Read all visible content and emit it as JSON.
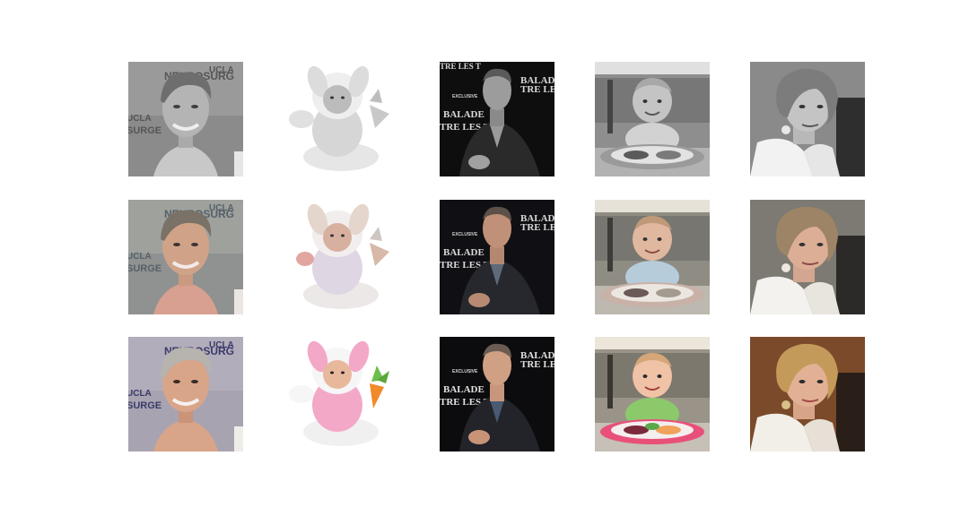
{
  "figure": {
    "rows": [
      {
        "name": "grayscale-input",
        "filter": "grayscale"
      },
      {
        "name": "colorized-result",
        "filter": "washed"
      },
      {
        "name": "ground-truth",
        "filter": "none"
      }
    ],
    "columns": [
      {
        "name": "woman-short-gray-hair",
        "backdrop_lines": [
          "UCLA",
          "NEUROSURG",
          "UCLA",
          "SURGE"
        ]
      },
      {
        "name": "baby-bunny-costume",
        "backdrop_lines": []
      },
      {
        "name": "man-dark-suit",
        "backdrop_lines": [
          "BALADE",
          "TRE LES T",
          "EXCLUSIVE"
        ]
      },
      {
        "name": "toddler-meal-tray",
        "backdrop_lines": []
      },
      {
        "name": "woman-blonde-hair",
        "backdrop_lines": []
      }
    ]
  },
  "palette": {
    "skin": "#d9a588",
    "gray_hair": "#b7b3ae",
    "backdrop_violet": "#a8a3b1",
    "bunny_pink": "#f3a8c8",
    "carrot": "#f08a2a",
    "suit": "#23242a",
    "tray_pink": "#e8507a",
    "shirt_green": "#8cc96a",
    "blonde": "#c49a5a",
    "bg_brown": "#7a4a2a",
    "white_jacket": "#f2efe9"
  }
}
